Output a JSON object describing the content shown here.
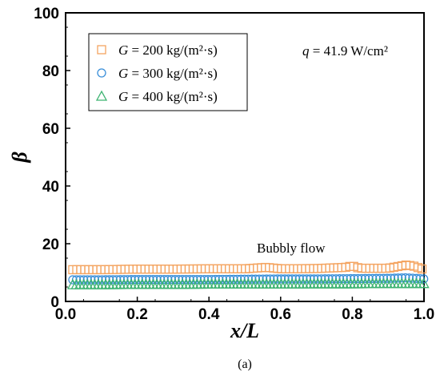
{
  "chart_data": {
    "type": "scatter",
    "xlabel": "x/L",
    "ylabel": "β",
    "xlim": [
      0,
      1
    ],
    "ylim": [
      0,
      100
    ],
    "xticks": [
      "0.0",
      "0.2",
      "0.4",
      "0.6",
      "0.8",
      "1.0"
    ],
    "yticks": [
      "0",
      "20",
      "40",
      "60",
      "80",
      "100"
    ],
    "grid": false,
    "legend_position": "top-left",
    "annotation_condition": {
      "prefix": "q",
      "text": " = 41.9 W/cm²"
    },
    "annotation_regime": "Bubbly flow",
    "caption": "(a)",
    "series": [
      {
        "prefix": "G",
        "name": " = 200 kg/(m²·s)",
        "marker": "square",
        "color": "#F4A460",
        "x": [
          0.02,
          0.1,
          0.2,
          0.3,
          0.4,
          0.5,
          0.56,
          0.6,
          0.7,
          0.78,
          0.8,
          0.82,
          0.9,
          0.95,
          0.97,
          1.0
        ],
        "y": [
          11,
          11,
          11.2,
          11.2,
          11.3,
          11.3,
          11.8,
          11.3,
          11.4,
          11.8,
          12.3,
          11.5,
          11.5,
          12.6,
          12.3,
          11
        ]
      },
      {
        "prefix": "G",
        "name": " = 300 kg/(m²·s)",
        "marker": "circle",
        "color": "#3A8FD9",
        "x": [
          0.02,
          0.1,
          0.2,
          0.3,
          0.4,
          0.5,
          0.6,
          0.7,
          0.8,
          0.9,
          0.95,
          1.0
        ],
        "y": [
          7.5,
          7.5,
          7.6,
          7.6,
          7.6,
          7.7,
          7.8,
          7.8,
          7.9,
          8,
          8.2,
          7.8
        ]
      },
      {
        "prefix": "G",
        "name": " = 400 kg/(m²·s)",
        "marker": "triangle",
        "color": "#3CB371",
        "x": [
          0.02,
          0.1,
          0.2,
          0.3,
          0.4,
          0.5,
          0.6,
          0.7,
          0.8,
          0.9,
          1.0
        ],
        "y": [
          5.8,
          5.8,
          5.9,
          5.9,
          6,
          6,
          6,
          6.1,
          6.1,
          6.2,
          6.2
        ]
      }
    ]
  }
}
